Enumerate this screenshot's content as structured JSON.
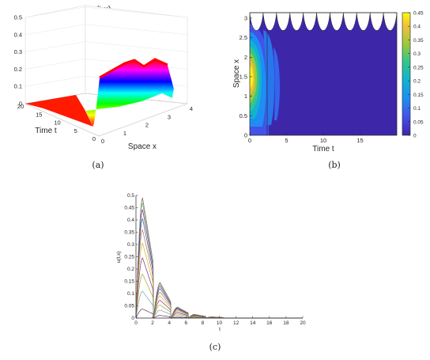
{
  "panels": {
    "a": {
      "caption": "(a)"
    },
    "b": {
      "caption": "(b)"
    },
    "c": {
      "caption": "(c)"
    }
  },
  "chart_data": [
    {
      "id": "a",
      "type": "surface",
      "title": "u(t,x)",
      "xlabel": "Space x",
      "ylabel": "Time t",
      "zlabel": "",
      "xlim": [
        0,
        4
      ],
      "ylim": [
        0,
        20
      ],
      "zlim": [
        0,
        0.5
      ],
      "x_ticks": [
        "0",
        "1",
        "2",
        "3",
        "4"
      ],
      "y_ticks": [
        "0",
        "5",
        "10",
        "15",
        "20"
      ],
      "z_ticks": [
        "0",
        "0.1",
        "0.2",
        "0.3",
        "0.4",
        "0.5"
      ],
      "colormap": "hsv",
      "peak": 0.45
    },
    {
      "id": "b",
      "type": "contour",
      "xlabel": "Time t",
      "ylabel": "Space x",
      "xlim": [
        0,
        20
      ],
      "ylim": [
        0,
        3.14
      ],
      "x_ticks": [
        "0",
        "5",
        "10",
        "15"
      ],
      "y_ticks": [
        "0",
        "0.5",
        "1",
        "1.5",
        "2",
        "2.5",
        "3"
      ],
      "colorbar_ticks": [
        "0",
        "0.05",
        "0.1",
        "0.15",
        "0.2",
        "0.25",
        "0.3",
        "0.35",
        "0.4",
        "0.45"
      ],
      "colorbar_range": [
        0,
        0.45
      ],
      "colormap": "parula",
      "peak": {
        "t": 0.3,
        "x": 1.55,
        "value": 0.45
      }
    },
    {
      "id": "c",
      "type": "line",
      "xlabel": "t",
      "ylabel": "u(t,x)",
      "xlim": [
        0,
        20
      ],
      "ylim": [
        0,
        0.5
      ],
      "x_ticks": [
        "0",
        "2",
        "4",
        "6",
        "8",
        "10",
        "12",
        "14",
        "16",
        "18",
        "20"
      ],
      "y_ticks": [
        "0",
        "0.05",
        "0.1",
        "0.15",
        "0.2",
        "0.25",
        "0.3",
        "0.35",
        "0.4",
        "0.45",
        "0.5"
      ],
      "series_count": 21,
      "envelope": {
        "pulses": [
          {
            "t_start": 0,
            "t_peak": 0.8,
            "t_end": 2.1,
            "peak": 0.49
          },
          {
            "t_start": 2.1,
            "t_peak": 2.9,
            "t_end": 4.2,
            "peak": 0.145
          },
          {
            "t_start": 4.2,
            "t_peak": 5.0,
            "t_end": 6.3,
            "peak": 0.045
          },
          {
            "t_start": 6.3,
            "t_peak": 7.0,
            "t_end": 8.4,
            "peak": 0.015
          },
          {
            "t_start": 8.4,
            "t_peak": 9.1,
            "t_end": 10.5,
            "peak": 0.005
          }
        ]
      }
    }
  ]
}
